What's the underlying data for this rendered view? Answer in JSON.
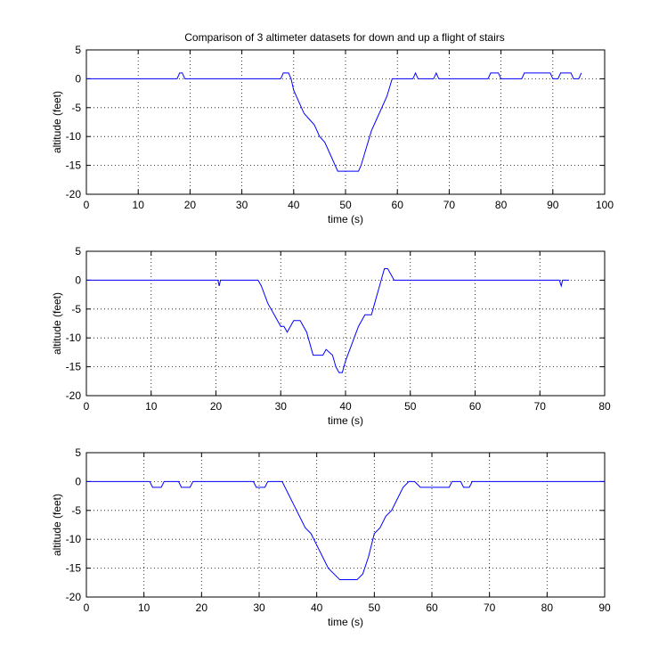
{
  "figure": {
    "title": "Comparison of 3 altimeter datasets for down and up a flight of stairs",
    "background": "#ffffff",
    "line_color": "#0000ff"
  },
  "chart_data": [
    {
      "type": "line",
      "xlabel": "time (s)",
      "ylabel": "altitude (feet)",
      "xlim": [
        0,
        100
      ],
      "ylim": [
        -20,
        5
      ],
      "xticks": [
        0,
        10,
        20,
        30,
        40,
        50,
        60,
        70,
        80,
        90,
        100
      ],
      "yticks": [
        5,
        0,
        -5,
        -10,
        -15,
        -20
      ],
      "grid": true,
      "series": [
        {
          "color": "#0000ff",
          "x": [
            0,
            17.5,
            18,
            18.5,
            19,
            37.5,
            38,
            39,
            39.5,
            40,
            41,
            42,
            43,
            44,
            45,
            46,
            47,
            48,
            48.5,
            52.5,
            53,
            54,
            55,
            56,
            57,
            58,
            59,
            60,
            63,
            63.5,
            64,
            67,
            67.5,
            68,
            77.5,
            78,
            79.5,
            80,
            84,
            84.5,
            89.5,
            90,
            91,
            91.5,
            93.5,
            94,
            95,
            95.5
          ],
          "y": [
            0,
            0,
            1,
            1,
            0,
            0,
            1,
            1,
            0,
            -2,
            -4,
            -6,
            -7,
            -8,
            -10,
            -11,
            -13,
            -15,
            -16,
            -16,
            -15,
            -12,
            -9,
            -7,
            -5,
            -3,
            0,
            0,
            0,
            1,
            0,
            0,
            1,
            0,
            0,
            1,
            1,
            0,
            0,
            1,
            1,
            0,
            0,
            1,
            1,
            0,
            0,
            1
          ]
        }
      ]
    },
    {
      "type": "line",
      "xlabel": "time (s)",
      "ylabel": "altitude (feet)",
      "xlim": [
        0,
        80
      ],
      "ylim": [
        -20,
        5
      ],
      "xticks": [
        0,
        10,
        20,
        30,
        40,
        50,
        60,
        70,
        80
      ],
      "yticks": [
        5,
        0,
        -5,
        -10,
        -15,
        -20
      ],
      "grid": true,
      "series": [
        {
          "color": "#0000ff",
          "x": [
            0,
            20.3,
            20.5,
            20.7,
            26.5,
            27,
            28,
            29,
            30,
            30.5,
            31,
            31.5,
            32,
            33,
            34,
            35,
            36.5,
            37,
            38,
            38.5,
            39,
            39.5,
            40,
            41,
            42,
            43,
            44,
            44.5,
            45,
            46,
            46.5,
            47,
            47.5,
            48,
            73,
            73.3,
            73.5,
            74,
            74.5
          ],
          "y": [
            0,
            0,
            -1,
            0,
            0,
            -1,
            -4,
            -6,
            -8,
            -8,
            -9,
            -8,
            -7,
            -7,
            -9,
            -13,
            -13,
            -12,
            -13,
            -15,
            -16,
            -16,
            -14,
            -11,
            -8,
            -6,
            -6,
            -4,
            -2,
            2,
            2,
            1,
            0,
            0,
            0,
            -1,
            0,
            0,
            0
          ]
        }
      ]
    },
    {
      "type": "line",
      "xlabel": "time (s)",
      "ylabel": "altitude (feet)",
      "xlim": [
        0,
        90
      ],
      "ylim": [
        -20,
        5
      ],
      "xticks": [
        0,
        10,
        20,
        30,
        40,
        50,
        60,
        70,
        80,
        90
      ],
      "yticks": [
        5,
        0,
        -5,
        -10,
        -15,
        -20
      ],
      "grid": true,
      "series": [
        {
          "color": "#0000ff",
          "x": [
            0,
            11,
            11.5,
            13,
            13.5,
            16,
            16.5,
            18,
            18.5,
            29,
            29.5,
            31,
            31.5,
            34,
            35,
            36,
            37,
            38,
            39,
            40,
            41,
            42,
            43,
            44,
            47,
            48,
            49,
            50,
            51,
            52,
            53,
            54,
            55,
            56,
            57,
            58,
            63,
            63.5,
            65,
            65.5,
            66.5,
            67,
            90
          ],
          "y": [
            0,
            0,
            -1,
            -1,
            0,
            0,
            -1,
            -1,
            0,
            0,
            -1,
            -1,
            0,
            0,
            -2,
            -4,
            -6,
            -8,
            -9,
            -11,
            -13,
            -15,
            -16,
            -17,
            -17,
            -16,
            -13,
            -9,
            -8,
            -6,
            -5,
            -3,
            -1,
            0,
            0,
            -1,
            -1,
            0,
            0,
            -1,
            -1,
            0,
            0
          ]
        }
      ]
    }
  ]
}
